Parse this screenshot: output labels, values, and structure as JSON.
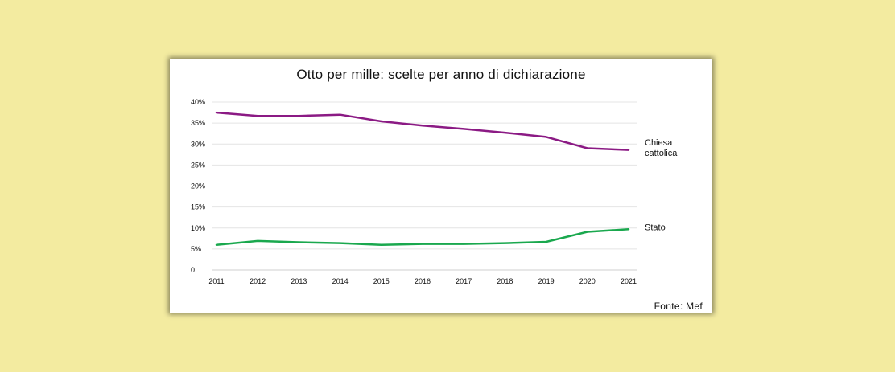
{
  "chart_data": {
    "type": "line",
    "title": "Otto per mille: scelte per anno di dichiarazione",
    "source": "Fonte: Mef",
    "x": [
      "2011",
      "2012",
      "2013",
      "2014",
      "2015",
      "2016",
      "2017",
      "2018",
      "2019",
      "2020",
      "2021"
    ],
    "y_ticks": [
      "0",
      "5%",
      "10%",
      "15%",
      "20%",
      "25%",
      "30%",
      "35%",
      "40%"
    ],
    "ylim": [
      0,
      40
    ],
    "grid": true,
    "series": [
      {
        "name_lines": [
          "Chiesa",
          "cattolica"
        ],
        "color": "#8b1a84",
        "values": [
          37.5,
          36.7,
          36.7,
          37.0,
          35.4,
          34.4,
          33.6,
          32.7,
          31.7,
          29.0,
          28.6
        ]
      },
      {
        "name_lines": [
          "Stato"
        ],
        "color": "#1aa84e",
        "values": [
          6.0,
          6.9,
          6.6,
          6.4,
          6.0,
          6.2,
          6.2,
          6.4,
          6.7,
          9.1,
          9.7
        ]
      }
    ]
  }
}
